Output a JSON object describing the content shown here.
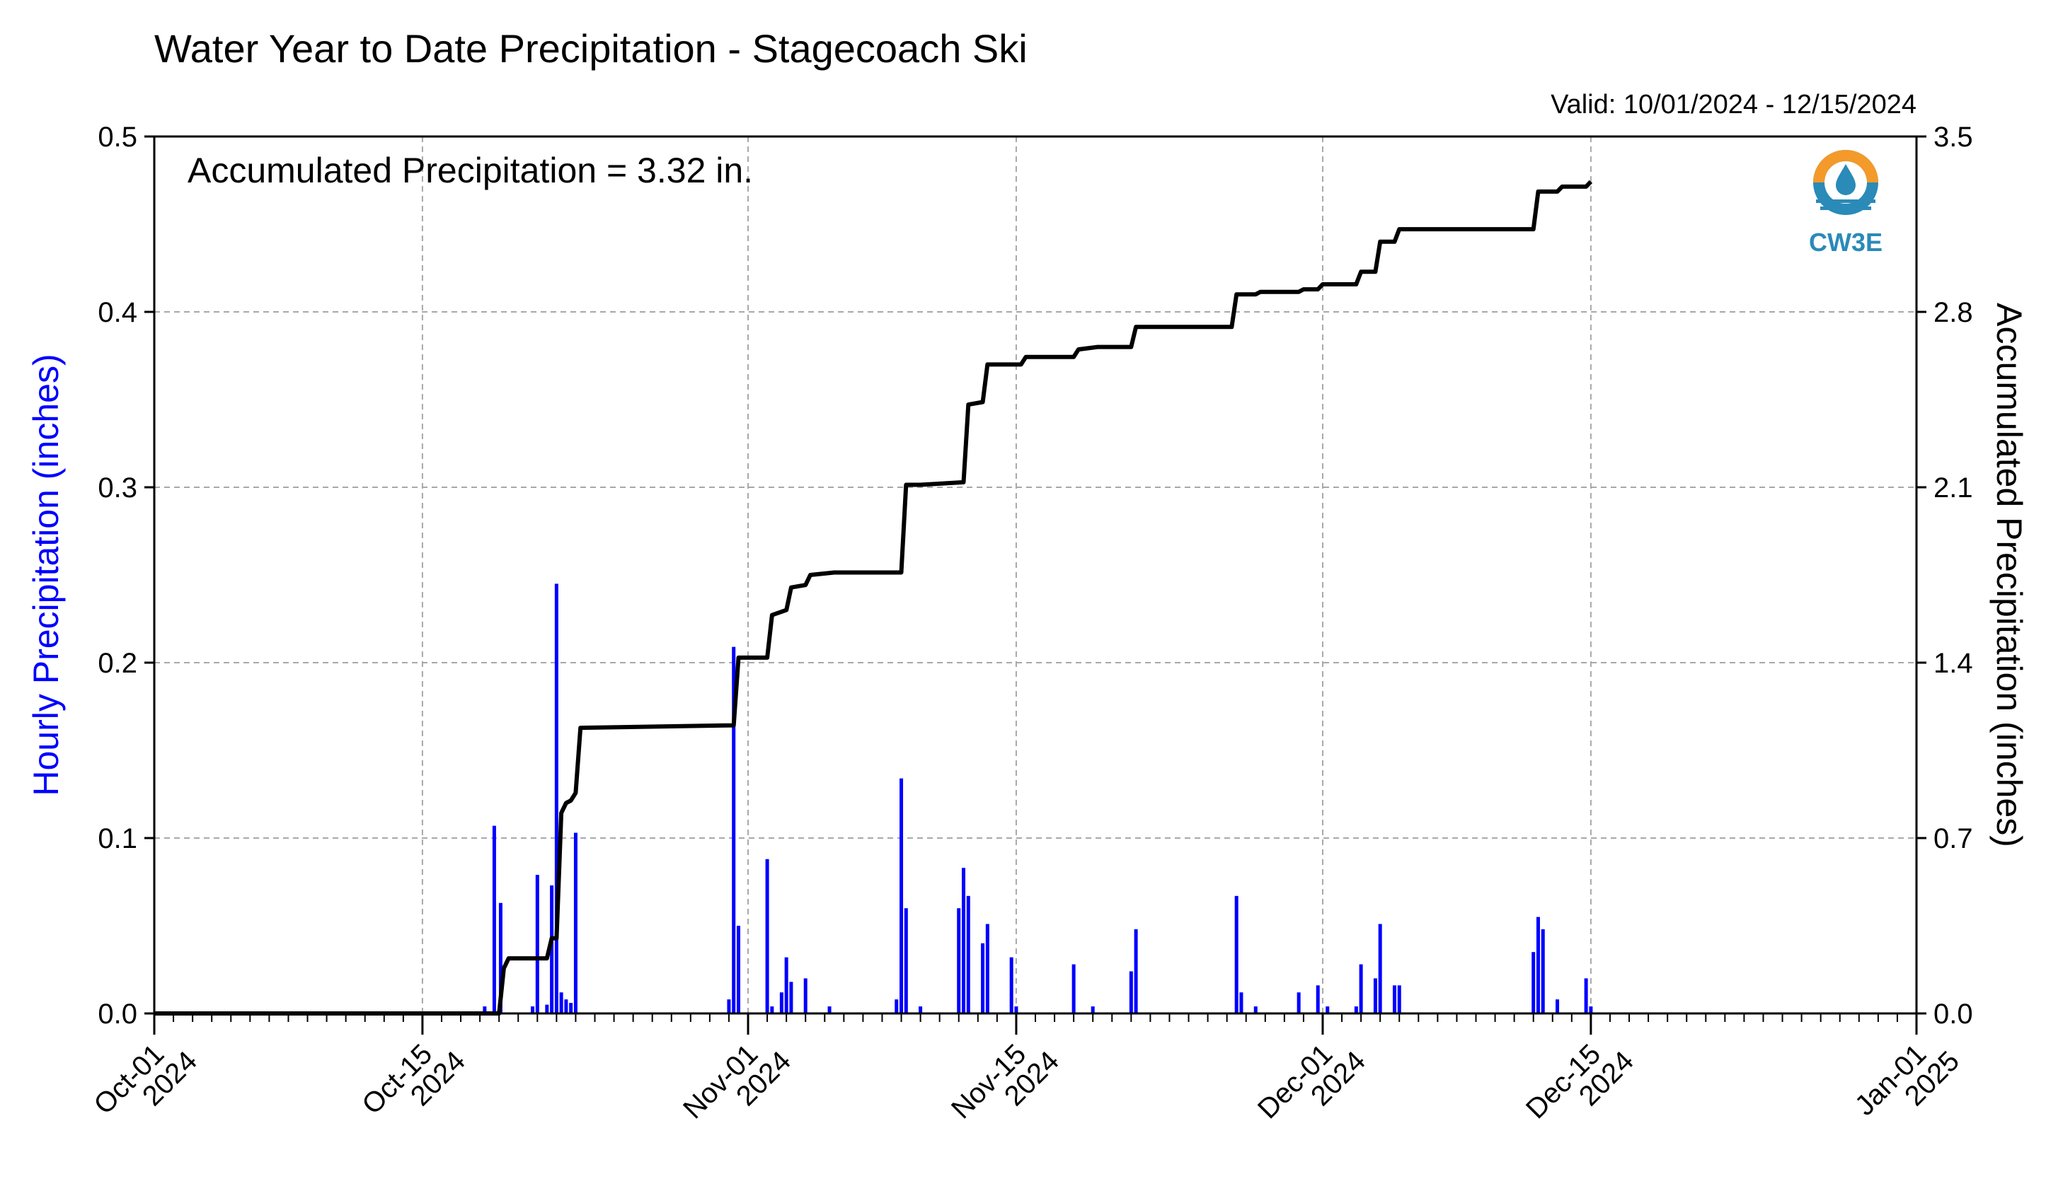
{
  "chart_data": {
    "type": "bar+line",
    "title": "Water Year to Date Precipitation - Stagecoach Ski",
    "valid_range": "Valid: 10/01/2024 - 12/15/2024",
    "annotation": "Accumulated Precipitation = 3.32 in.",
    "logo_text": "CW3E",
    "y_left_label": "Hourly Precipitation (inches)",
    "y_right_label": "Accumulated Precipitation (inches)",
    "x_start": "2024-10-01",
    "x_end": "2025-01-01",
    "y_left_lim": [
      0,
      0.5
    ],
    "y_right_lim": [
      0,
      3.5
    ],
    "grid": true,
    "y_left_ticks": [
      {
        "value": 0.0,
        "label": "0.0"
      },
      {
        "value": 0.1,
        "label": "0.1"
      },
      {
        "value": 0.2,
        "label": "0.2"
      },
      {
        "value": 0.3,
        "label": "0.3"
      },
      {
        "value": 0.4,
        "label": "0.4"
      },
      {
        "value": 0.5,
        "label": "0.5"
      }
    ],
    "y_right_ticks": [
      {
        "value": 0.0,
        "label": "0.0"
      },
      {
        "value": 0.7,
        "label": "0.7"
      },
      {
        "value": 1.4,
        "label": "1.4"
      },
      {
        "value": 2.1,
        "label": "2.1"
      },
      {
        "value": 2.8,
        "label": "2.8"
      },
      {
        "value": 3.5,
        "label": "3.5"
      }
    ],
    "x_ticks": [
      {
        "date": "2024-10-01",
        "line1": "Oct-01",
        "line2": "2024"
      },
      {
        "date": "2024-10-15",
        "line1": "Oct-15",
        "line2": "2024"
      },
      {
        "date": "2024-11-01",
        "line1": "Nov-01",
        "line2": "2024"
      },
      {
        "date": "2024-11-15",
        "line1": "Nov-15",
        "line2": "2024"
      },
      {
        "date": "2024-12-01",
        "line1": "Dec-01",
        "line2": "2024"
      },
      {
        "date": "2024-12-15",
        "line1": "Dec-15",
        "line2": "2024"
      },
      {
        "date": "2025-01-01",
        "line1": "Jan-01",
        "line2": "2025"
      }
    ],
    "series": [
      {
        "name": "Hourly Precipitation",
        "type": "bar",
        "color": "#0000ff",
        "points": [
          [
            "2024-10-18T06:00",
            0.004
          ],
          [
            "2024-10-18T18:00",
            0.107
          ],
          [
            "2024-10-19T02:00",
            0.063
          ],
          [
            "2024-10-20T18:00",
            0.004
          ],
          [
            "2024-10-21T00:00",
            0.079
          ],
          [
            "2024-10-21T12:00",
            0.005
          ],
          [
            "2024-10-21T18:00",
            0.073
          ],
          [
            "2024-10-22T00:00",
            0.245
          ],
          [
            "2024-10-22T06:00",
            0.012
          ],
          [
            "2024-10-22T12:00",
            0.008
          ],
          [
            "2024-10-22T18:00",
            0.006
          ],
          [
            "2024-10-23T00:00",
            0.103
          ],
          [
            "2024-10-31T00:00",
            0.008
          ],
          [
            "2024-10-31T06:00",
            0.209
          ],
          [
            "2024-10-31T12:00",
            0.05
          ],
          [
            "2024-11-02T00:00",
            0.088
          ],
          [
            "2024-11-02T06:00",
            0.004
          ],
          [
            "2024-11-02T18:00",
            0.012
          ],
          [
            "2024-11-03T00:00",
            0.032
          ],
          [
            "2024-11-03T06:00",
            0.018
          ],
          [
            "2024-11-04T00:00",
            0.02
          ],
          [
            "2024-11-05T06:00",
            0.004
          ],
          [
            "2024-11-08T18:00",
            0.008
          ],
          [
            "2024-11-09T00:00",
            0.134
          ],
          [
            "2024-11-09T06:00",
            0.06
          ],
          [
            "2024-11-10T00:00",
            0.004
          ],
          [
            "2024-11-12T00:00",
            0.06
          ],
          [
            "2024-11-12T06:00",
            0.083
          ],
          [
            "2024-11-12T12:00",
            0.067
          ],
          [
            "2024-11-13T06:00",
            0.04
          ],
          [
            "2024-11-13T12:00",
            0.051
          ],
          [
            "2024-11-14T18:00",
            0.032
          ],
          [
            "2024-11-15T00:00",
            0.004
          ],
          [
            "2024-11-18T00:00",
            0.028
          ],
          [
            "2024-11-19T00:00",
            0.004
          ],
          [
            "2024-11-21T00:00",
            0.024
          ],
          [
            "2024-11-21T06:00",
            0.048
          ],
          [
            "2024-11-26T12:00",
            0.067
          ],
          [
            "2024-11-26T18:00",
            0.012
          ],
          [
            "2024-11-27T12:00",
            0.004
          ],
          [
            "2024-11-29T18:00",
            0.012
          ],
          [
            "2024-11-30T18:00",
            0.016
          ],
          [
            "2024-12-01T06:00",
            0.004
          ],
          [
            "2024-12-02T18:00",
            0.004
          ],
          [
            "2024-12-03T00:00",
            0.028
          ],
          [
            "2024-12-03T18:00",
            0.02
          ],
          [
            "2024-12-04T00:00",
            0.051
          ],
          [
            "2024-12-04T18:00",
            0.016
          ],
          [
            "2024-12-05T00:00",
            0.016
          ],
          [
            "2024-12-12T00:00",
            0.035
          ],
          [
            "2024-12-12T06:00",
            0.055
          ],
          [
            "2024-12-12T12:00",
            0.048
          ],
          [
            "2024-12-13T06:00",
            0.008
          ],
          [
            "2024-12-14T18:00",
            0.02
          ],
          [
            "2024-12-15T00:00",
            0.004
          ]
        ]
      },
      {
        "name": "Accumulated Precipitation",
        "type": "step-line",
        "color": "#000000",
        "points": [
          [
            "2024-10-01T00:00",
            0.0
          ],
          [
            "2024-10-19T00:00",
            0.0
          ],
          [
            "2024-10-19T06:00",
            0.18
          ],
          [
            "2024-10-19T12:00",
            0.22
          ],
          [
            "2024-10-21T12:00",
            0.22
          ],
          [
            "2024-10-21T18:00",
            0.3
          ],
          [
            "2024-10-22T00:00",
            0.3
          ],
          [
            "2024-10-22T06:00",
            0.8
          ],
          [
            "2024-10-22T12:00",
            0.84
          ],
          [
            "2024-10-22T18:00",
            0.85
          ],
          [
            "2024-10-23T00:00",
            0.88
          ],
          [
            "2024-10-23T06:00",
            1.14
          ],
          [
            "2024-10-31T06:00",
            1.15
          ],
          [
            "2024-10-31T12:00",
            1.42
          ],
          [
            "2024-11-02T00:00",
            1.42
          ],
          [
            "2024-11-02T06:00",
            1.59
          ],
          [
            "2024-11-03T00:00",
            1.61
          ],
          [
            "2024-11-03T06:00",
            1.7
          ],
          [
            "2024-11-04T00:00",
            1.71
          ],
          [
            "2024-11-04T06:00",
            1.75
          ],
          [
            "2024-11-05T12:00",
            1.76
          ],
          [
            "2024-11-09T00:00",
            1.76
          ],
          [
            "2024-11-09T06:00",
            2.11
          ],
          [
            "2024-11-10T00:00",
            2.11
          ],
          [
            "2024-11-12T06:00",
            2.12
          ],
          [
            "2024-11-12T12:00",
            2.43
          ],
          [
            "2024-11-13T06:00",
            2.44
          ],
          [
            "2024-11-13T12:00",
            2.59
          ],
          [
            "2024-11-15T06:00",
            2.59
          ],
          [
            "2024-11-15T12:00",
            2.62
          ],
          [
            "2024-11-18T00:00",
            2.62
          ],
          [
            "2024-11-18T06:00",
            2.65
          ],
          [
            "2024-11-19T06:00",
            2.66
          ],
          [
            "2024-11-21T00:00",
            2.66
          ],
          [
            "2024-11-21T06:00",
            2.74
          ],
          [
            "2024-11-26T06:00",
            2.74
          ],
          [
            "2024-11-26T12:00",
            2.87
          ],
          [
            "2024-11-27T12:00",
            2.87
          ],
          [
            "2024-11-27T18:00",
            2.88
          ],
          [
            "2024-11-29T18:00",
            2.88
          ],
          [
            "2024-11-30T00:00",
            2.89
          ],
          [
            "2024-11-30T18:00",
            2.89
          ],
          [
            "2024-12-01T00:00",
            2.91
          ],
          [
            "2024-12-02T18:00",
            2.91
          ],
          [
            "2024-12-03T00:00",
            2.96
          ],
          [
            "2024-12-03T18:00",
            2.96
          ],
          [
            "2024-12-04T00:00",
            3.08
          ],
          [
            "2024-12-04T18:00",
            3.08
          ],
          [
            "2024-12-05T00:00",
            3.13
          ],
          [
            "2024-12-12T00:00",
            3.13
          ],
          [
            "2024-12-12T06:00",
            3.28
          ],
          [
            "2024-12-13T06:00",
            3.28
          ],
          [
            "2024-12-13T12:00",
            3.3
          ],
          [
            "2024-12-14T18:00",
            3.3
          ],
          [
            "2024-12-15T00:00",
            3.32
          ]
        ]
      }
    ]
  }
}
